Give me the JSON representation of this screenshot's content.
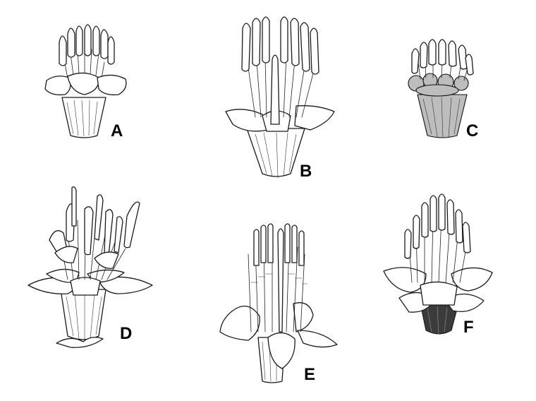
{
  "panels": [
    {
      "id": "A",
      "label": "A"
    },
    {
      "id": "B",
      "label": "B"
    },
    {
      "id": "C",
      "label": "C"
    },
    {
      "id": "D",
      "label": "D"
    },
    {
      "id": "E",
      "label": "E"
    },
    {
      "id": "F",
      "label": "F"
    }
  ],
  "colors": {
    "background": "#ffffff",
    "ink": "#1a1a1a"
  },
  "icons": [
    "flower-illustration"
  ]
}
